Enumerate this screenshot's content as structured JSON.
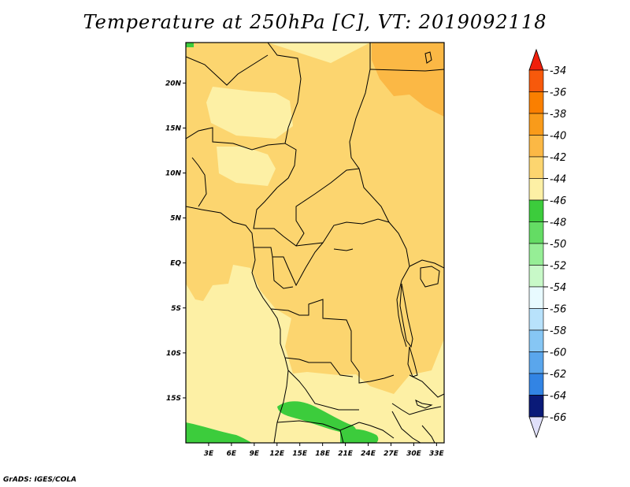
{
  "title": "Temperature at 250hPa [C], VT: 2019092118",
  "credit": "GrADS: IGES/COLA",
  "chart_data": {
    "type": "heatmap",
    "title": "Temperature at 250hPa [C], VT: 2019092118",
    "variable": "Temperature",
    "level": "250hPa",
    "units": "C",
    "valid_time": "2019092118",
    "lon_range": [
      0,
      34
    ],
    "lat_range": [
      -20,
      24.5
    ],
    "x_ticks": [
      {
        "value": 3,
        "label": "3E"
      },
      {
        "value": 6,
        "label": "6E"
      },
      {
        "value": 9,
        "label": "9E"
      },
      {
        "value": 12,
        "label": "12E"
      },
      {
        "value": 15,
        "label": "15E"
      },
      {
        "value": 18,
        "label": "18E"
      },
      {
        "value": 21,
        "label": "21E"
      },
      {
        "value": 24,
        "label": "24E"
      },
      {
        "value": 27,
        "label": "27E"
      },
      {
        "value": 30,
        "label": "30E"
      },
      {
        "value": 33,
        "label": "33E"
      }
    ],
    "y_ticks": [
      {
        "value": 20,
        "label": "20N"
      },
      {
        "value": 15,
        "label": "15N"
      },
      {
        "value": 10,
        "label": "10N"
      },
      {
        "value": 5,
        "label": "5N"
      },
      {
        "value": 0,
        "label": "EQ"
      },
      {
        "value": -5,
        "label": "5S"
      },
      {
        "value": -10,
        "label": "10S"
      },
      {
        "value": -15,
        "label": "15S"
      }
    ],
    "colorbar": {
      "min": -66,
      "max": -34,
      "levels": [
        {
          "label": "-34",
          "color": "#f7590b"
        },
        {
          "label": "-36",
          "color": "#fa7f00"
        },
        {
          "label": "-38",
          "color": "#f99b1a"
        },
        {
          "label": "-40",
          "color": "#fbb845"
        },
        {
          "label": "-42",
          "color": "#fcd56f"
        },
        {
          "label": "-44",
          "color": "#fdf0a5"
        },
        {
          "label": "-46",
          "color": "#3ccc3c"
        },
        {
          "label": "-48",
          "color": "#64dc64"
        },
        {
          "label": "-50",
          "color": "#96ee96"
        },
        {
          "label": "-52",
          "color": "#c8f9c8"
        },
        {
          "label": "-54",
          "color": "#e8faff"
        },
        {
          "label": "-56",
          "color": "#b8e2fb"
        },
        {
          "label": "-58",
          "color": "#86c6f4"
        },
        {
          "label": "-60",
          "color": "#5aa6ec"
        },
        {
          "label": "-62",
          "color": "#3284e4"
        },
        {
          "label": "-64",
          "color": "#1d60cf"
        },
        {
          "label": "-66",
          "color": "#0f3ab0"
        }
      ],
      "top_triangle_color": "#f01f0b",
      "bottom_triangle_color": "#0a1a78",
      "end_triangle_lower_color": "#e0e0fa"
    },
    "regions": [
      {
        "name": "background",
        "range": "-44 to -42",
        "color": "#fdf0a5"
      },
      {
        "name": "central",
        "range": "-42 to -40",
        "color": "#fcd56f"
      },
      {
        "name": "northeast",
        "range": "-40 to -38",
        "color": "#fbb845"
      },
      {
        "name": "southwest",
        "range": "-46 to -44",
        "color": "#3ccc3c"
      }
    ]
  }
}
